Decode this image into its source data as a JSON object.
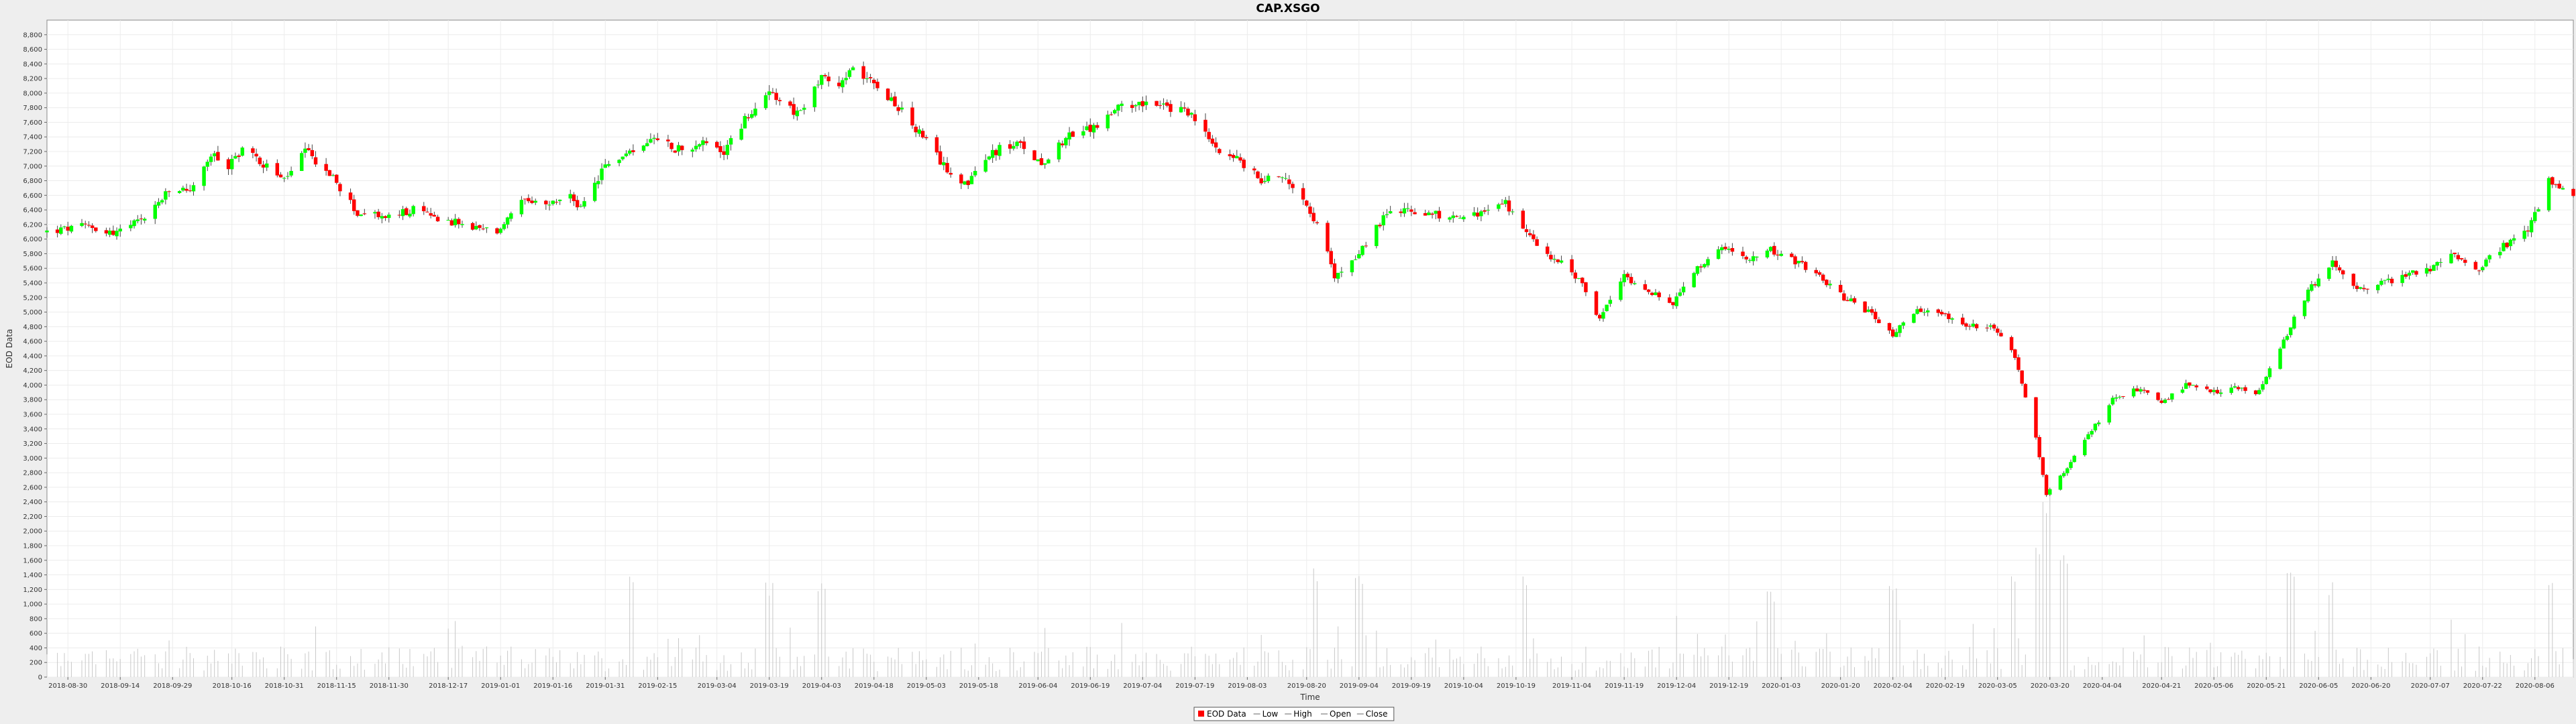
{
  "chart_data": {
    "type": "candlestick",
    "title": "CAP.XSGO",
    "xlabel": "Time",
    "ylabel": "EOD Data",
    "ylim": [
      0,
      9000
    ],
    "volume_ylim": [
      0,
      9000
    ],
    "y_ticks": [
      0,
      200,
      400,
      600,
      800,
      1000,
      1200,
      1400,
      1600,
      1800,
      2000,
      2200,
      2400,
      2600,
      2800,
      3000,
      3200,
      3400,
      3600,
      3800,
      4000,
      4200,
      4400,
      4600,
      4800,
      5000,
      5200,
      5400,
      5600,
      5800,
      6000,
      6200,
      6400,
      6600,
      6800,
      7000,
      7200,
      7400,
      7600,
      7800,
      8000,
      8200,
      8400,
      8600,
      8800
    ],
    "x_range": [
      "2018-08-24",
      "2020-08-17"
    ],
    "x_ticks": [
      "2018-08-30",
      "2018-09-14",
      "2018-09-29",
      "2018-10-16",
      "2018-10-31",
      "2018-11-15",
      "2018-11-30",
      "2018-12-17",
      "2019-01-01",
      "2019-01-16",
      "2019-01-31",
      "2019-02-15",
      "2019-03-04",
      "2019-03-19",
      "2019-04-03",
      "2019-04-18",
      "2019-05-03",
      "2019-05-18",
      "2019-06-04",
      "2019-06-19",
      "2019-07-04",
      "2019-07-19",
      "2019-08-03",
      "2019-08-20",
      "2019-09-04",
      "2019-09-19",
      "2019-10-04",
      "2019-10-19",
      "2019-11-04",
      "2019-11-19",
      "2019-12-04",
      "2019-12-19",
      "2020-01-03",
      "2020-01-20",
      "2020-02-04",
      "2020-02-19",
      "2020-03-05",
      "2020-03-20",
      "2020-04-04",
      "2020-04-21",
      "2020-05-06",
      "2020-05-21",
      "2020-06-05",
      "2020-06-20",
      "2020-07-07",
      "2020-07-22",
      "2020-08-06"
    ],
    "close_path": [
      [
        "2018-08-24",
        6100
      ],
      [
        "2018-09-05",
        6180
      ],
      [
        "2018-09-12",
        6080
      ],
      [
        "2018-09-20",
        6250
      ],
      [
        "2018-09-28",
        6650
      ],
      [
        "2018-10-05",
        6700
      ],
      [
        "2018-10-10",
        7150
      ],
      [
        "2018-10-15",
        7000
      ],
      [
        "2018-10-19",
        7250
      ],
      [
        "2018-10-26",
        7000
      ],
      [
        "2018-10-31",
        6800
      ],
      [
        "2018-11-06",
        7200
      ],
      [
        "2018-11-13",
        6900
      ],
      [
        "2018-11-21",
        6350
      ],
      [
        "2018-11-30",
        6300
      ],
      [
        "2018-12-07",
        6400
      ],
      [
        "2018-12-14",
        6300
      ],
      [
        "2018-12-24",
        6150
      ],
      [
        "2018-12-31",
        6100
      ],
      [
        "2019-01-07",
        6500
      ],
      [
        "2019-01-14",
        6450
      ],
      [
        "2019-01-21",
        6600
      ],
      [
        "2019-01-24",
        6400
      ],
      [
        "2019-01-31",
        7000
      ],
      [
        "2019-02-07",
        7200
      ],
      [
        "2019-02-14",
        7450
      ],
      [
        "2019-02-20",
        7250
      ],
      [
        "2019-02-28",
        7300
      ],
      [
        "2019-03-06",
        7200
      ],
      [
        "2019-03-13",
        7700
      ],
      [
        "2019-03-20",
        8000
      ],
      [
        "2019-03-27",
        7700
      ],
      [
        "2019-04-03",
        8200
      ],
      [
        "2019-04-08",
        8100
      ],
      [
        "2019-04-11",
        8300
      ],
      [
        "2019-04-17",
        8250
      ],
      [
        "2019-04-24",
        7850
      ],
      [
        "2019-05-01",
        7450
      ],
      [
        "2019-05-08",
        7000
      ],
      [
        "2019-05-15",
        6750
      ],
      [
        "2019-05-22",
        7200
      ],
      [
        "2019-05-29",
        7300
      ],
      [
        "2019-06-05",
        7050
      ],
      [
        "2019-06-12",
        7400
      ],
      [
        "2019-06-19",
        7500
      ],
      [
        "2019-06-26",
        7750
      ],
      [
        "2019-07-03",
        7900
      ],
      [
        "2019-07-10",
        7800
      ],
      [
        "2019-07-17",
        7750
      ],
      [
        "2019-07-24",
        7300
      ],
      [
        "2019-07-31",
        7100
      ],
      [
        "2019-08-07",
        6800
      ],
      [
        "2019-08-12",
        6900
      ],
      [
        "2019-08-19",
        6600
      ],
      [
        "2019-08-23",
        6200
      ],
      [
        "2019-08-28",
        5500
      ],
      [
        "2019-09-04",
        5800
      ],
      [
        "2019-09-11",
        6300
      ],
      [
        "2019-09-18",
        6400
      ],
      [
        "2019-09-25",
        6350
      ],
      [
        "2019-10-02",
        6300
      ],
      [
        "2019-10-09",
        6350
      ],
      [
        "2019-10-16",
        6500
      ],
      [
        "2019-10-21",
        6100
      ],
      [
        "2019-10-28",
        5800
      ],
      [
        "2019-11-04",
        5550
      ],
      [
        "2019-11-08",
        5300
      ],
      [
        "2019-11-12",
        4900
      ],
      [
        "2019-11-19",
        5500
      ],
      [
        "2019-11-26",
        5300
      ],
      [
        "2019-12-03",
        5100
      ],
      [
        "2019-12-10",
        5600
      ],
      [
        "2019-12-17",
        5850
      ],
      [
        "2019-12-24",
        5750
      ],
      [
        "2019-12-31",
        5850
      ],
      [
        "2020-01-07",
        5700
      ],
      [
        "2020-01-14",
        5500
      ],
      [
        "2020-01-21",
        5200
      ],
      [
        "2020-01-28",
        5000
      ],
      [
        "2020-02-04",
        4700
      ],
      [
        "2020-02-11",
        5000
      ],
      [
        "2020-02-18",
        5000
      ],
      [
        "2020-02-25",
        4800
      ],
      [
        "2020-03-03",
        4800
      ],
      [
        "2020-03-10",
        4400
      ],
      [
        "2020-03-16",
        3300
      ],
      [
        "2020-03-19",
        2500
      ],
      [
        "2020-03-24",
        2800
      ],
      [
        "2020-03-31",
        3300
      ],
      [
        "2020-04-07",
        3800
      ],
      [
        "2020-04-14",
        3950
      ],
      [
        "2020-04-21",
        3750
      ],
      [
        "2020-04-28",
        4000
      ],
      [
        "2020-05-05",
        3900
      ],
      [
        "2020-05-12",
        3950
      ],
      [
        "2020-05-19",
        3900
      ],
      [
        "2020-05-26",
        4600
      ],
      [
        "2020-06-02",
        5300
      ],
      [
        "2020-06-09",
        5700
      ],
      [
        "2020-06-16",
        5300
      ],
      [
        "2020-06-23",
        5400
      ],
      [
        "2020-06-30",
        5500
      ],
      [
        "2020-07-07",
        5600
      ],
      [
        "2020-07-14",
        5800
      ],
      [
        "2020-07-21",
        5600
      ],
      [
        "2020-07-28",
        5900
      ],
      [
        "2020-08-04",
        6100
      ],
      [
        "2020-08-10",
        6800
      ],
      [
        "2020-08-17",
        6650
      ]
    ],
    "volume_profile": {
      "baseline": [
        80,
        420
      ],
      "spikes": [
        [
          "2019-02-08",
          1400
        ],
        [
          "2019-03-19",
          1300
        ],
        [
          "2019-04-03",
          1300
        ],
        [
          "2019-08-23",
          1500
        ],
        [
          "2019-09-04",
          1500
        ],
        [
          "2019-10-21",
          1400
        ],
        [
          "2019-12-31",
          1200
        ],
        [
          "2020-02-04",
          1400
        ],
        [
          "2020-03-09",
          1400
        ],
        [
          "2020-03-16",
          1800
        ],
        [
          "2020-03-19",
          2600
        ],
        [
          "2020-03-24",
          1700
        ],
        [
          "2020-05-28",
          1600
        ],
        [
          "2020-06-08",
          1300
        ],
        [
          "2020-08-10",
          1400
        ]
      ]
    },
    "colors": {
      "up": "#00ff00",
      "down": "#ff0000",
      "wick": "#000000",
      "volume": "#c8c8c8",
      "grid": "#ececec",
      "plot_bg": "#ffffff"
    },
    "grid": true,
    "legend_position": "bottom-center",
    "legend": [
      {
        "label": "EOD Data",
        "color": "#ff0000",
        "symbol": "square"
      },
      {
        "label": "Low",
        "color": "#999999",
        "symbol": "line"
      },
      {
        "label": "High",
        "color": "#999999",
        "symbol": "line"
      },
      {
        "label": "Open",
        "color": "#999999",
        "symbol": "line"
      },
      {
        "label": "Close",
        "color": "#999999",
        "symbol": "line"
      }
    ]
  }
}
